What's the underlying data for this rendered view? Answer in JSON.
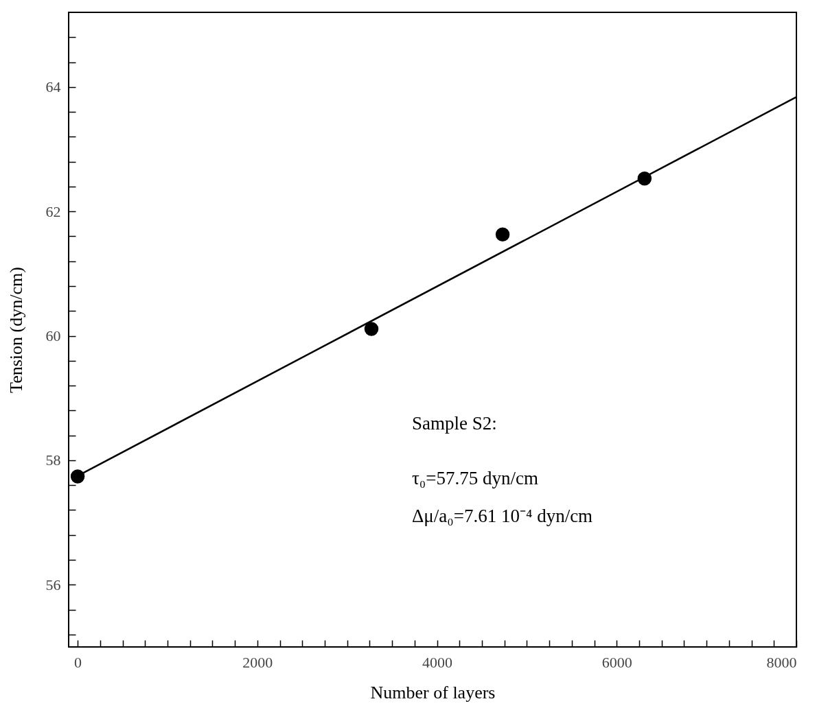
{
  "chart_data": {
    "type": "scatter",
    "xlabel": "Number of layers",
    "ylabel": "Tension (dyn/cm)",
    "x": [
      0,
      3270,
      4730,
      6310
    ],
    "series": [
      {
        "type": "scatter",
        "color": "#000000",
        "marker": "circle",
        "values": [
          57.74,
          60.11,
          61.63,
          62.53
        ]
      },
      {
        "type": "line",
        "color": "#000000",
        "line_style": "solid",
        "x": [
          0,
          8000
        ],
        "values": [
          57.75,
          63.84
        ]
      }
    ],
    "xlim": [
      -100,
      8000
    ],
    "ylim": [
      55.0,
      65.2
    ],
    "xticks": [
      0,
      {
        "value": 250,
        "label": null
      },
      {
        "value": 500,
        "label": null
      },
      {
        "value": 750,
        "label": null
      },
      {
        "value": 1000,
        "label": null
      },
      {
        "value": 1250,
        "label": null
      },
      {
        "value": 1500,
        "label": null
      },
      {
        "value": 1750,
        "label": null
      },
      2000,
      {
        "value": 2250,
        "label": null
      },
      {
        "value": 2500,
        "label": null
      },
      {
        "value": 2750,
        "label": null
      },
      {
        "value": 3000,
        "label": null
      },
      {
        "value": 3250,
        "label": null
      },
      {
        "value": 3500,
        "label": null
      },
      {
        "value": 3750,
        "label": null
      },
      4000,
      {
        "value": 4250,
        "label": null
      },
      {
        "value": 4500,
        "label": null
      },
      {
        "value": 4750,
        "label": null
      },
      {
        "value": 5000,
        "label": null
      },
      {
        "value": 5250,
        "label": null
      },
      {
        "value": 5500,
        "label": null
      },
      {
        "value": 5750,
        "label": null
      },
      6000,
      {
        "value": 6250,
        "label": null
      },
      {
        "value": 6500,
        "label": null
      },
      {
        "value": 6750,
        "label": null
      },
      {
        "value": 7000,
        "label": null
      },
      {
        "value": 7250,
        "label": null
      },
      {
        "value": 7500,
        "label": null
      },
      {
        "value": 7750,
        "label": null
      },
      8000
    ],
    "yticks": [
      {
        "value": 55.2,
        "label": null
      },
      {
        "value": 55.6,
        "label": null
      },
      56,
      {
        "value": 56.4,
        "label": null
      },
      {
        "value": 56.8,
        "label": null
      },
      {
        "value": 57.2,
        "label": null
      },
      {
        "value": 57.6,
        "label": null
      },
      58,
      {
        "value": 58.4,
        "label": null
      },
      {
        "value": 58.8,
        "label": null
      },
      {
        "value": 59.2,
        "label": null
      },
      {
        "value": 59.6,
        "label": null
      },
      60,
      {
        "value": 60.4,
        "label": null
      },
      {
        "value": 60.8,
        "label": null
      },
      {
        "value": 61.2,
        "label": null
      },
      {
        "value": 61.6,
        "label": null
      },
      62,
      {
        "value": 62.4,
        "label": null
      },
      {
        "value": 62.8,
        "label": null
      },
      {
        "value": 63.2,
        "label": null
      },
      {
        "value": 63.6,
        "label": null
      },
      64,
      {
        "value": 64.4,
        "label": null
      },
      {
        "value": 64.8,
        "label": null
      }
    ],
    "grid": false,
    "annotations": [
      "Sample S2:",
      "τ₀=57.75 dyn/cm",
      "Δμ/a₀=7.61 10⁻⁴ dyn/cm"
    ]
  }
}
